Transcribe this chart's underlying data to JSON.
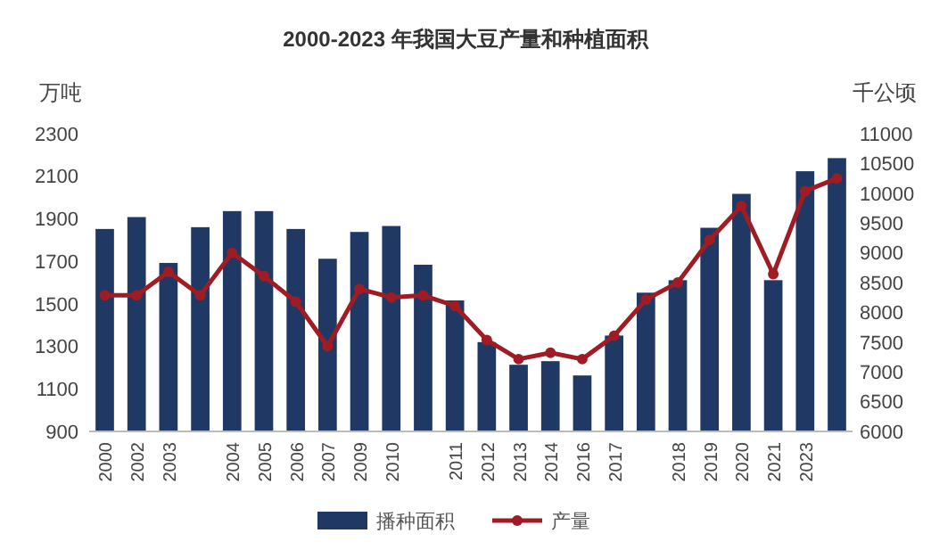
{
  "chart_data": {
    "type": "bar",
    "title": "2000-2023 年我国大豆产量和种植面积",
    "ylabel": "万吨",
    "y2label": "千公顷",
    "categories": [
      "2000",
      "2002",
      "2003",
      null,
      "2004",
      "2005",
      "2006",
      "2007",
      "2009",
      "2010",
      null,
      "2011",
      "2012",
      "2013",
      "2014",
      "2016",
      "2017",
      null,
      "2018",
      "2019",
      "2020",
      "2021",
      "2023",
      null
    ],
    "series": [
      {
        "name": "播种面积",
        "axis": "y2",
        "color": "#203864",
        "values": [
          9400,
          9600,
          8830,
          9430,
          9700,
          9700,
          9400,
          8900,
          9350,
          9450,
          8800,
          8200,
          7500,
          7120,
          7180,
          6940,
          7610,
          8330,
          8540,
          9420,
          9990,
          8540,
          10370,
          10590
        ]
      },
      {
        "name": "产量",
        "type": "line",
        "color": "#a01c24",
        "marker": "circle",
        "values": [
          1540,
          1540,
          1650,
          1540,
          1740,
          1630,
          1510,
          1300,
          1570,
          1530,
          1540,
          1490,
          1330,
          1240,
          1270,
          1240,
          1350,
          1520,
          1600,
          1800,
          1960,
          1640,
          2030,
          2090
        ]
      }
    ],
    "ylim": [
      900,
      2300
    ],
    "yticks": [
      900,
      1100,
      1300,
      1500,
      1700,
      1900,
      2100,
      2300
    ],
    "y2lim": [
      6000,
      11000
    ],
    "y2ticks": [
      6000,
      6500,
      7000,
      7500,
      8000,
      8500,
      9000,
      9500,
      10000,
      10500,
      11000
    ],
    "legend": "bottom"
  }
}
